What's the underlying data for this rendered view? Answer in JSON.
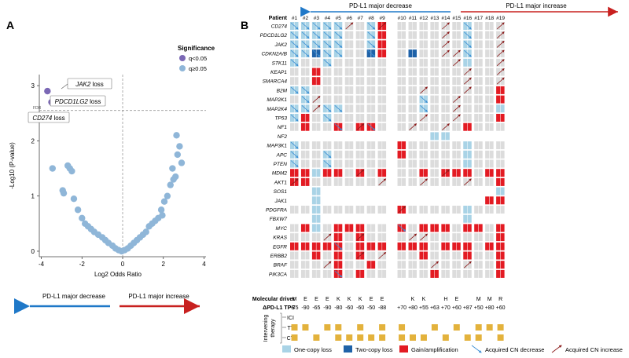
{
  "panel_a": {
    "label": "A",
    "ylabel": "-Log10 (P-value)",
    "xlabel": "Log2 Odds Ratio",
    "fdr_label": "FDR",
    "legend_title": "Significance",
    "legend_items": [
      {
        "label": "q<0.05",
        "color": "#7b68b5"
      },
      {
        "label": "q≥0.05",
        "color": "#8fb6d8"
      }
    ],
    "annotations": [
      {
        "gene": "JAK2",
        "suffix": " loss"
      },
      {
        "gene": "PDCD1LG2",
        "suffix": " loss"
      },
      {
        "gene": "CD274",
        "suffix": " loss"
      }
    ],
    "arrow_left": "PD-L1 major decrease",
    "arrow_right": "PD-L1 major increase"
  },
  "chart_data": {
    "type": "scatter",
    "xlabel": "Log2 Odds Ratio",
    "ylabel": "-Log10 (P-value)",
    "xlim": [
      -4.1,
      4.1
    ],
    "ylim": [
      -0.1,
      3.2
    ],
    "xticks": [
      -4,
      -2,
      0,
      2,
      4
    ],
    "yticks": [
      0,
      1,
      2,
      3
    ],
    "fdr_threshold": 2.55,
    "significant": [
      [
        -3.7,
        2.9
      ],
      [
        -3.5,
        2.7
      ]
    ],
    "nonsignificant": [
      [
        -3.45,
        1.5
      ],
      [
        -2.95,
        1.1
      ],
      [
        -2.9,
        1.05
      ],
      [
        -2.7,
        1.55
      ],
      [
        -2.6,
        1.5
      ],
      [
        -2.5,
        1.45
      ],
      [
        -2.4,
        0.95
      ],
      [
        -2.2,
        0.75
      ],
      [
        -2.0,
        0.6
      ],
      [
        -1.85,
        0.5
      ],
      [
        -1.7,
        0.45
      ],
      [
        -1.55,
        0.4
      ],
      [
        -1.4,
        0.35
      ],
      [
        -1.2,
        0.3
      ],
      [
        -1.0,
        0.25
      ],
      [
        -0.85,
        0.2
      ],
      [
        -0.7,
        0.15
      ],
      [
        -0.5,
        0.1
      ],
      [
        -0.35,
        0.05
      ],
      [
        -0.2,
        0.02
      ],
      [
        -0.05,
        0.0
      ],
      [
        0.1,
        0.02
      ],
      [
        0.25,
        0.05
      ],
      [
        0.4,
        0.1
      ],
      [
        0.55,
        0.15
      ],
      [
        0.7,
        0.2
      ],
      [
        0.85,
        0.25
      ],
      [
        1.0,
        0.3
      ],
      [
        1.15,
        0.35
      ],
      [
        1.3,
        0.45
      ],
      [
        1.45,
        0.5
      ],
      [
        1.6,
        0.55
      ],
      [
        1.75,
        0.6
      ],
      [
        1.9,
        0.75
      ],
      [
        2.05,
        0.9
      ],
      [
        2.2,
        1.0
      ],
      [
        2.35,
        1.2
      ],
      [
        2.5,
        1.3
      ],
      [
        2.6,
        1.35
      ],
      [
        2.7,
        1.75
      ],
      [
        2.8,
        1.9
      ],
      [
        2.65,
        2.1
      ],
      [
        2.9,
        1.6
      ],
      [
        2.45,
        1.5
      ],
      [
        1.95,
        0.65
      ]
    ]
  },
  "panel_b": {
    "label": "B",
    "group_left": "PD-L1 major decrease",
    "group_right": "PD-L1 major increase",
    "patient_label": "Patient",
    "patients": [
      "#1",
      "#2",
      "#3",
      "#4",
      "#5",
      "#6",
      "#7",
      "#8",
      "#9",
      "#10",
      "#11",
      "#12",
      "#13",
      "#14",
      "#15",
      "#16",
      "#17",
      "#18",
      "#19"
    ],
    "genes": [
      "CD274",
      "PDCD1LG2",
      "JAK2",
      "CDKN2A/B",
      "STK11",
      "KEAP1",
      "SMARCA4",
      "B2M",
      "MAP2K1",
      "MAP2K4",
      "TP53",
      "NF1",
      "NF2",
      "MAP3K1",
      "APC",
      "PTEN",
      "MDM2",
      "AKT1",
      "SOS1",
      "JAK1",
      "PDGFRA",
      "FBXW7",
      "MYC",
      "KRAS",
      "EGFR",
      "ERBB2",
      "BRAF",
      "PIK3CA"
    ],
    "driver_label": "Molecular driver",
    "drivers": [
      "M",
      "E",
      "E",
      "E",
      "K",
      "K",
      "K",
      "E",
      "E",
      "",
      "K",
      "K",
      "",
      "H",
      "E",
      "",
      "M",
      "M",
      "R"
    ],
    "tps_label": "ΔPD-L1 TPS",
    "tps": [
      "-75",
      "-90",
      "-65",
      "-90",
      "-80",
      "-60",
      "-60",
      "-50",
      "-88",
      "+70",
      "+80",
      "+55",
      "+63",
      "+70",
      "+60",
      "+87",
      "+50",
      "+80",
      "+60"
    ],
    "therapy_label_line1": "Intervening",
    "therapy_label_line2": "therapy",
    "therapy_rows": [
      "ICI",
      "TT",
      "CT"
    ],
    "therapy_ici": [
      0,
      0,
      0,
      0,
      0,
      0,
      0,
      0,
      0,
      0,
      0,
      0,
      0,
      0,
      0,
      0,
      0,
      0,
      0
    ],
    "therapy_tt": [
      1,
      1,
      0,
      1,
      1,
      0,
      1,
      0,
      1,
      1,
      0,
      0,
      1,
      0,
      1,
      0,
      1,
      1,
      1
    ],
    "therapy_ct": [
      1,
      0,
      1,
      0,
      1,
      1,
      1,
      1,
      1,
      1,
      1,
      1,
      0,
      1,
      0,
      1,
      1,
      0,
      1
    ],
    "legend": [
      {
        "label": "One-copy loss",
        "color": "#a9d3e6"
      },
      {
        "label": "Two-copy loss",
        "color": "#1f62a8"
      },
      {
        "label": "Gain/amplification",
        "color": "#e31b23"
      },
      {
        "label": "Acquired CN decrease",
        "color": "#3b8fd4"
      },
      {
        "label": "Acquired CN increase",
        "color": "#8b1a1a"
      }
    ]
  }
}
